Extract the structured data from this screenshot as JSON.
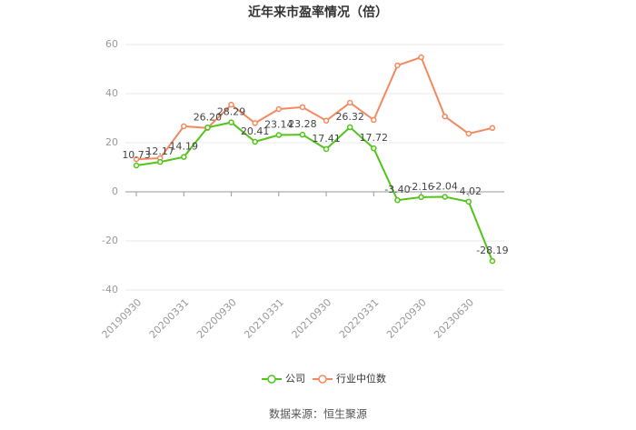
{
  "chart_data": {
    "type": "line",
    "title": "近年来市盈率情况（倍）",
    "source": "数据来源：恒生聚源",
    "categories": [
      "20190930",
      null,
      "20200331",
      null,
      "20200930",
      null,
      "20210331",
      null,
      "20210930",
      null,
      "20220331",
      null,
      "20220930",
      null,
      "20230630",
      null
    ],
    "series": [
      {
        "name": "公司",
        "color": "#52c41a",
        "values": [
          10.73,
          12.17,
          14.19,
          26.2,
          28.29,
          20.41,
          23.14,
          23.28,
          17.41,
          26.32,
          17.72,
          -3.4,
          -2.16,
          -2.04,
          -4.02,
          -28.19
        ],
        "value_labels": [
          "10.73",
          "12.17",
          "14.19",
          "26.20",
          "28.29",
          "20.41",
          "23.14",
          "23.28",
          "17.41",
          "26.32",
          "17.72",
          "-3.40",
          "-2.16",
          "-2.04",
          "-4.02",
          "-28.19"
        ]
      },
      {
        "name": "行业中位数",
        "color": "#f4895f",
        "values": [
          13.3,
          13.7,
          26.7,
          26,
          35.5,
          28,
          33.7,
          34.5,
          29,
          36.3,
          29.3,
          51.5,
          54.8,
          30.7,
          23.7,
          26
        ]
      }
    ],
    "ylim": [
      -40,
      60
    ],
    "yticks": [
      -40,
      -20,
      0,
      20,
      40,
      60
    ],
    "grid": true
  }
}
